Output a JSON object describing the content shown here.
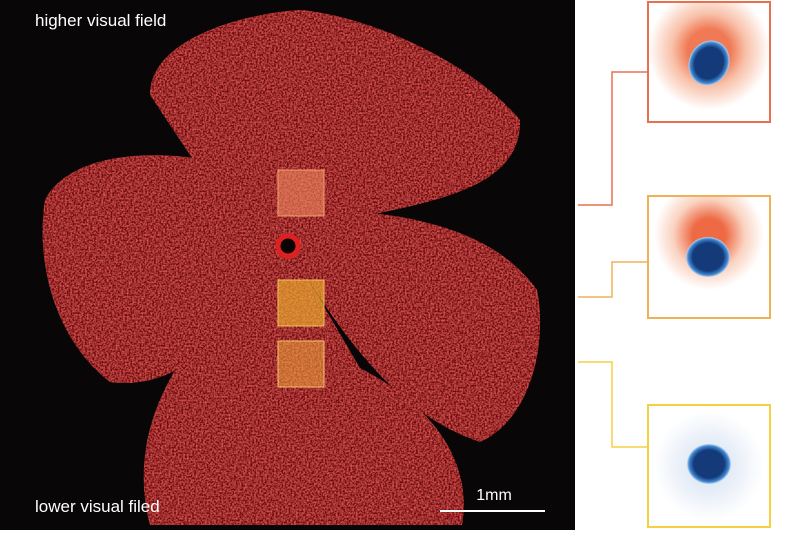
{
  "labels": {
    "top": "higher visual field",
    "bottom": "lower visual filed",
    "scale": "1mm"
  }
}
